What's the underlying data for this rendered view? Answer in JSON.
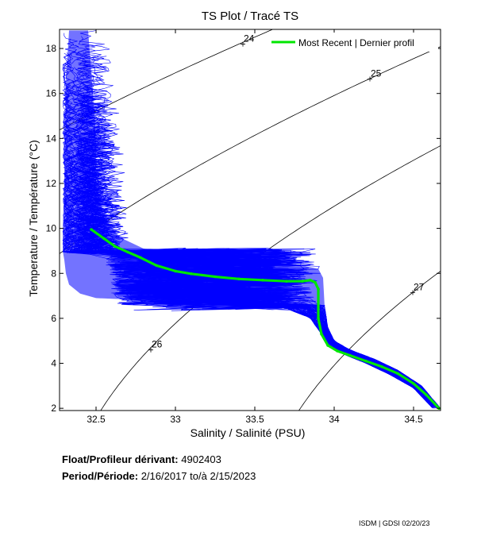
{
  "chart_data": {
    "type": "line",
    "title": "TS Plot / Tracé TS",
    "xlabel": "Salinity / Salinité (PSU)",
    "ylabel": "Temperature / Température (°C)",
    "xlim": [
      32.27,
      34.67
    ],
    "ylim": [
      1.9,
      18.85
    ],
    "xticks": [
      32.5,
      33,
      33.5,
      34,
      34.5
    ],
    "yticks": [
      2,
      4,
      6,
      8,
      10,
      12,
      14,
      16,
      18
    ],
    "xtick_labels": [
      "32.5",
      "33",
      "33.5",
      "34",
      "34.5"
    ],
    "ytick_labels": [
      "2",
      "4",
      "6",
      "8",
      "10",
      "12",
      "14",
      "16",
      "18"
    ],
    "legend": {
      "position": "top-right",
      "entries": [
        {
          "label": "Most Recent | Dernier profil",
          "color": "#00e600"
        }
      ]
    },
    "series": [
      {
        "name": "Most Recent | Dernier profil",
        "color": "#00e600",
        "points": [
          [
            32.47,
            9.95
          ],
          [
            32.55,
            9.55
          ],
          [
            32.62,
            9.2
          ],
          [
            32.7,
            8.95
          ],
          [
            32.78,
            8.7
          ],
          [
            32.88,
            8.35
          ],
          [
            33.0,
            8.1
          ],
          [
            33.1,
            7.98
          ],
          [
            33.25,
            7.85
          ],
          [
            33.4,
            7.75
          ],
          [
            33.55,
            7.7
          ],
          [
            33.7,
            7.65
          ],
          [
            33.8,
            7.65
          ],
          [
            33.85,
            7.7
          ],
          [
            33.88,
            7.6
          ],
          [
            33.9,
            7.3
          ],
          [
            33.9,
            6.0
          ],
          [
            33.92,
            5.3
          ],
          [
            33.96,
            4.8
          ],
          [
            34.02,
            4.55
          ],
          [
            34.1,
            4.35
          ],
          [
            34.2,
            4.1
          ],
          [
            34.3,
            3.85
          ],
          [
            34.4,
            3.55
          ],
          [
            34.5,
            3.1
          ],
          [
            34.58,
            2.6
          ],
          [
            34.66,
            2.0
          ]
        ]
      }
    ],
    "density_contours": [
      {
        "label": "24",
        "label_at": [
          33.43,
          18.3
        ]
      },
      {
        "label": "25",
        "label_at": [
          34.23,
          16.75
        ]
      },
      {
        "label": "26",
        "label_at": [
          32.85,
          4.7
        ]
      },
      {
        "label": "27",
        "label_at": [
          34.5,
          7.25
        ]
      }
    ],
    "envelope": {
      "name": "All profiles",
      "color": "#0000ff",
      "left_edge": [
        [
          32.33,
          18.8
        ],
        [
          32.31,
          16.5
        ],
        [
          32.3,
          14.0
        ],
        [
          32.3,
          12.0
        ],
        [
          32.29,
          10.0
        ],
        [
          32.29,
          9.0
        ],
        [
          32.3,
          8.6
        ],
        [
          32.31,
          8.0
        ],
        [
          32.33,
          7.5
        ],
        [
          32.4,
          7.1
        ],
        [
          32.5,
          6.9
        ],
        [
          33.0,
          6.75
        ],
        [
          33.5,
          6.65
        ],
        [
          33.68,
          6.5
        ],
        [
          33.85,
          6.0
        ],
        [
          33.93,
          5.2
        ],
        [
          33.96,
          4.8
        ],
        [
          34.06,
          4.4
        ],
        [
          34.2,
          4.0
        ],
        [
          34.35,
          3.5
        ],
        [
          34.5,
          2.9
        ],
        [
          34.62,
          2.0
        ]
      ],
      "right_edge": [
        [
          34.67,
          2.0
        ],
        [
          34.55,
          3.0
        ],
        [
          34.4,
          3.7
        ],
        [
          34.25,
          4.2
        ],
        [
          34.1,
          4.6
        ],
        [
          34.0,
          5.0
        ],
        [
          33.96,
          5.6
        ],
        [
          33.94,
          6.5
        ],
        [
          33.93,
          7.8
        ],
        [
          33.9,
          8.2
        ],
        [
          33.8,
          8.35
        ],
        [
          33.5,
          8.6
        ],
        [
          33.2,
          8.75
        ],
        [
          33.0,
          8.85
        ],
        [
          32.8,
          9.1
        ],
        [
          32.65,
          9.6
        ],
        [
          32.55,
          10.5
        ],
        [
          32.5,
          12.0
        ],
        [
          32.5,
          14.0
        ],
        [
          32.48,
          16.0
        ],
        [
          32.45,
          18.8
        ]
      ],
      "hump": [
        [
          32.48,
          7.0
        ],
        [
          32.7,
          6.9
        ],
        [
          33.0,
          6.7
        ],
        [
          33.3,
          6.5
        ],
        [
          33.6,
          6.4
        ],
        [
          33.8,
          6.2
        ],
        [
          33.9,
          5.8
        ]
      ]
    }
  },
  "info": {
    "float_label": "Float/Profileur dérivant:",
    "float_id": "4902403",
    "period_label": "Period/Période:",
    "period_start": "2/16/2017",
    "period_sep": "to/à",
    "period_end": "2/15/2023"
  },
  "credit": "ISDM | GDSI  02/20/23"
}
